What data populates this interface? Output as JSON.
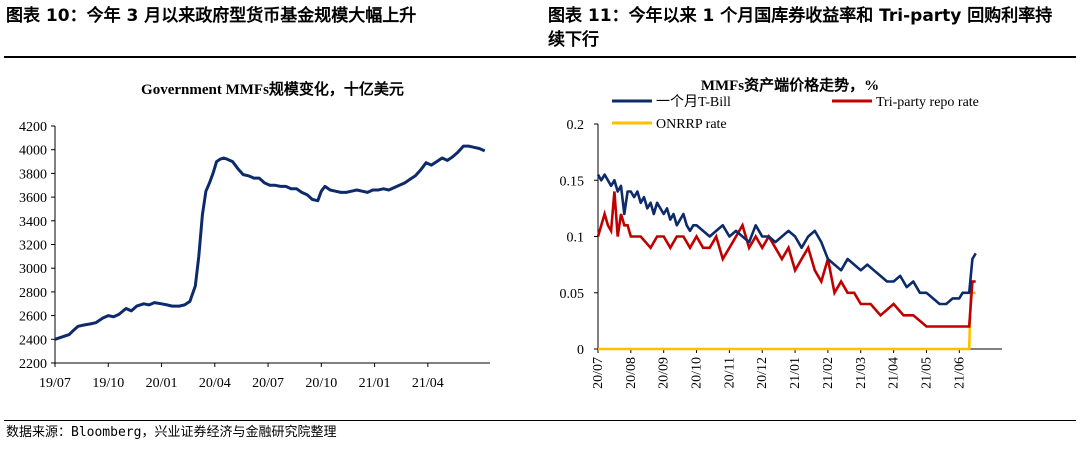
{
  "figures": {
    "left_title": "图表 10：今年 3 月以来政府型货币基金规模大幅上升",
    "right_title": "图表 11：今年以来 1 个月国库券收益率和 Tri-party 回购利率持续下行"
  },
  "source": "数据来源：Bloomberg，兴业证券经济与金融研究院整理",
  "colors": {
    "navy": "#0d2a6b",
    "red": "#c00000",
    "gold": "#ffc000",
    "axis": "#000000"
  },
  "chart_data": [
    {
      "type": "line",
      "title": "Government MMFs规模变化，十亿美元",
      "xlabel": "",
      "ylabel": "",
      "ylim": [
        2200,
        4200
      ],
      "yticks": [
        2200,
        2400,
        2600,
        2800,
        3000,
        3200,
        3400,
        3600,
        3800,
        4000,
        4200
      ],
      "xlim": [
        0,
        24.5
      ],
      "xticks": [
        {
          "x": 0,
          "label": "19/07"
        },
        {
          "x": 3,
          "label": "19/10"
        },
        {
          "x": 6,
          "label": "20/01"
        },
        {
          "x": 9,
          "label": "20/04"
        },
        {
          "x": 12,
          "label": "20/07"
        },
        {
          "x": 15,
          "label": "20/10"
        },
        {
          "x": 18,
          "label": "21/01"
        },
        {
          "x": 21,
          "label": "21/04"
        }
      ],
      "series": [
        {
          "name": "Government MMFs",
          "x": [
            0,
            0.4,
            0.8,
            1.0,
            1.3,
            1.6,
            2.0,
            2.3,
            2.7,
            3.0,
            3.3,
            3.6,
            4.0,
            4.3,
            4.6,
            5.0,
            5.3,
            5.6,
            6.0,
            6.3,
            6.6,
            7.0,
            7.3,
            7.6,
            7.9,
            8.1,
            8.3,
            8.5,
            8.7,
            8.9,
            9.1,
            9.3,
            9.5,
            9.7,
            10.0,
            10.3,
            10.6,
            10.9,
            11.2,
            11.5,
            11.8,
            12.1,
            12.4,
            12.7,
            13.0,
            13.3,
            13.6,
            13.9,
            14.2,
            14.5,
            14.8,
            15.0,
            15.2,
            15.5,
            15.8,
            16.1,
            16.4,
            16.7,
            17.0,
            17.3,
            17.6,
            17.9,
            18.2,
            18.5,
            18.8,
            19.1,
            19.4,
            19.7,
            20.0,
            20.3,
            20.6,
            20.9,
            21.2,
            21.5,
            21.8,
            22.1,
            22.4,
            22.7,
            23.0,
            23.3,
            23.6,
            23.9,
            24.2
          ],
          "values": [
            2400,
            2420,
            2440,
            2470,
            2510,
            2520,
            2530,
            2540,
            2580,
            2600,
            2590,
            2610,
            2660,
            2640,
            2680,
            2700,
            2690,
            2710,
            2700,
            2690,
            2680,
            2680,
            2690,
            2720,
            2850,
            3100,
            3450,
            3650,
            3720,
            3800,
            3900,
            3920,
            3930,
            3920,
            3900,
            3840,
            3790,
            3780,
            3760,
            3760,
            3720,
            3700,
            3700,
            3690,
            3690,
            3670,
            3670,
            3640,
            3620,
            3580,
            3570,
            3650,
            3690,
            3660,
            3650,
            3640,
            3640,
            3650,
            3660,
            3650,
            3640,
            3660,
            3660,
            3670,
            3660,
            3680,
            3700,
            3720,
            3750,
            3780,
            3830,
            3890,
            3870,
            3900,
            3930,
            3910,
            3940,
            3980,
            4030,
            4030,
            4020,
            4010,
            3990
          ]
        }
      ]
    },
    {
      "type": "line",
      "title": "MMFs资产端价格走势，%",
      "xlabel": "",
      "ylabel": "",
      "ylim": [
        0,
        0.2
      ],
      "yticks": [
        0,
        0.05,
        0.1,
        0.15,
        0.2
      ],
      "ytick_labels": [
        "0",
        "0.05",
        "0.1",
        "0.15",
        "0.2"
      ],
      "xlim": [
        0,
        12.3
      ],
      "xticks": [
        {
          "x": 0,
          "label": "20/07"
        },
        {
          "x": 1,
          "label": "20/08"
        },
        {
          "x": 2,
          "label": "20/09"
        },
        {
          "x": 3,
          "label": "20/10"
        },
        {
          "x": 4,
          "label": "20/11"
        },
        {
          "x": 5,
          "label": "20/12"
        },
        {
          "x": 6,
          "label": "21/01"
        },
        {
          "x": 7,
          "label": "21/02"
        },
        {
          "x": 8,
          "label": "21/03"
        },
        {
          "x": 9,
          "label": "21/04"
        },
        {
          "x": 10,
          "label": "21/05"
        },
        {
          "x": 11,
          "label": "21/06"
        }
      ],
      "legend": "top",
      "series": [
        {
          "name": "一个月T-Bill",
          "color_key": "navy",
          "x": [
            0,
            0.1,
            0.2,
            0.3,
            0.4,
            0.5,
            0.6,
            0.7,
            0.8,
            0.9,
            1.0,
            1.1,
            1.2,
            1.3,
            1.4,
            1.5,
            1.6,
            1.7,
            1.8,
            1.9,
            2.0,
            2.1,
            2.2,
            2.3,
            2.4,
            2.5,
            2.6,
            2.7,
            2.8,
            2.9,
            3.0,
            3.2,
            3.4,
            3.6,
            3.8,
            4.0,
            4.2,
            4.4,
            4.6,
            4.8,
            5.0,
            5.2,
            5.4,
            5.6,
            5.8,
            6.0,
            6.2,
            6.4,
            6.6,
            6.8,
            7.0,
            7.2,
            7.4,
            7.6,
            7.8,
            8.0,
            8.2,
            8.4,
            8.6,
            8.8,
            9.0,
            9.2,
            9.4,
            9.6,
            9.8,
            10.0,
            10.2,
            10.4,
            10.6,
            10.8,
            11.0,
            11.1,
            11.2,
            11.3,
            11.4,
            11.5
          ],
          "values": [
            0.155,
            0.15,
            0.155,
            0.15,
            0.145,
            0.15,
            0.14,
            0.145,
            0.12,
            0.14,
            0.14,
            0.135,
            0.14,
            0.13,
            0.135,
            0.125,
            0.13,
            0.12,
            0.13,
            0.125,
            0.12,
            0.125,
            0.115,
            0.12,
            0.11,
            0.115,
            0.12,
            0.11,
            0.105,
            0.11,
            0.11,
            0.105,
            0.1,
            0.105,
            0.11,
            0.1,
            0.105,
            0.1,
            0.095,
            0.11,
            0.1,
            0.1,
            0.095,
            0.1,
            0.105,
            0.1,
            0.09,
            0.1,
            0.105,
            0.095,
            0.08,
            0.075,
            0.07,
            0.08,
            0.075,
            0.07,
            0.075,
            0.07,
            0.065,
            0.06,
            0.06,
            0.065,
            0.055,
            0.06,
            0.05,
            0.05,
            0.045,
            0.04,
            0.04,
            0.045,
            0.045,
            0.05,
            0.05,
            0.05,
            0.08,
            0.085
          ]
        },
        {
          "name": "Tri-party repo rate",
          "color_key": "red",
          "x": [
            0,
            0.1,
            0.2,
            0.3,
            0.4,
            0.5,
            0.6,
            0.7,
            0.8,
            0.9,
            1.0,
            1.3,
            1.6,
            1.8,
            2.0,
            2.2,
            2.4,
            2.6,
            2.8,
            3.0,
            3.2,
            3.4,
            3.6,
            3.8,
            4.0,
            4.2,
            4.4,
            4.6,
            4.8,
            5.0,
            5.2,
            5.4,
            5.6,
            5.8,
            6.0,
            6.2,
            6.4,
            6.6,
            6.8,
            7.0,
            7.2,
            7.4,
            7.6,
            7.8,
            8.0,
            8.3,
            8.6,
            9.0,
            9.3,
            9.6,
            10.0,
            10.3,
            10.6,
            11.0,
            11.3,
            11.4,
            11.5
          ],
          "values": [
            0.1,
            0.11,
            0.12,
            0.11,
            0.105,
            0.14,
            0.1,
            0.12,
            0.11,
            0.11,
            0.1,
            0.1,
            0.09,
            0.1,
            0.1,
            0.09,
            0.1,
            0.1,
            0.09,
            0.1,
            0.09,
            0.09,
            0.1,
            0.08,
            0.09,
            0.1,
            0.11,
            0.09,
            0.1,
            0.09,
            0.1,
            0.09,
            0.08,
            0.09,
            0.07,
            0.08,
            0.09,
            0.07,
            0.06,
            0.08,
            0.05,
            0.06,
            0.05,
            0.05,
            0.04,
            0.04,
            0.03,
            0.04,
            0.03,
            0.03,
            0.02,
            0.02,
            0.02,
            0.02,
            0.02,
            0.06,
            0.06
          ]
        },
        {
          "name": "ONRRP rate",
          "color_key": "gold",
          "x": [
            0,
            11.2,
            11.3,
            11.35,
            11.5
          ],
          "values": [
            0,
            0,
            0,
            0.05,
            0.05
          ]
        }
      ]
    }
  ]
}
